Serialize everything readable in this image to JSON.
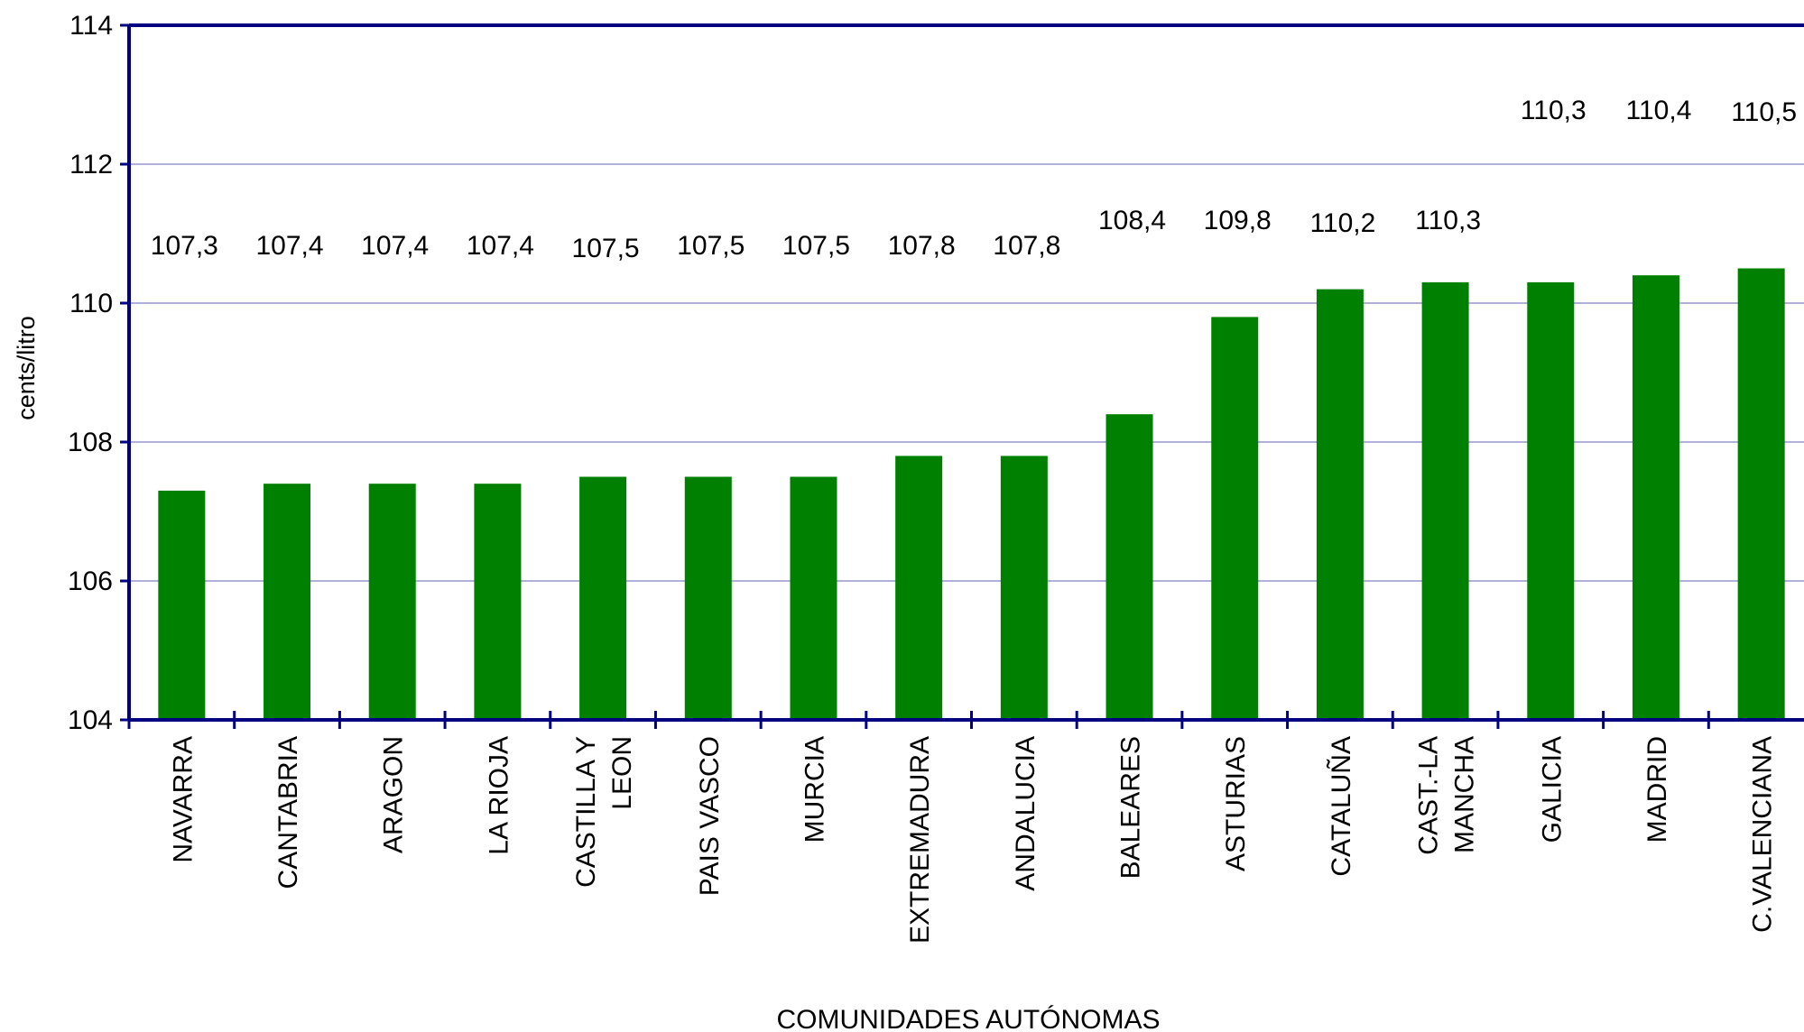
{
  "chart_data": {
    "type": "bar",
    "x_label": "COMUNIDADES AUTÓNOMAS",
    "y_label": "cents/litro",
    "categories": [
      "NAVARRA",
      "CANTABRIA",
      "ARAGON",
      "LA RIOJA",
      "CASTILLA Y\nLEON",
      "PAIS VASCO",
      "MURCIA",
      "EXTREMADURA",
      "ANDALUCIA",
      "BALEARES",
      "ASTURIAS",
      "CATALUÑA",
      "CAST.-LA\nMANCHA",
      "GALICIA",
      "MADRID",
      "C.VALENCIANA"
    ],
    "values": [
      107.3,
      107.4,
      107.4,
      107.4,
      107.5,
      107.5,
      107.5,
      107.8,
      107.8,
      108.4,
      109.8,
      110.2,
      110.3,
      110.3,
      110.4,
      110.5
    ],
    "value_labels": [
      "107,3",
      "107,4",
      "107,4",
      "107,4",
      "107,5",
      "107,5",
      "107,5",
      "107,8",
      "107,8",
      "108,4",
      "109,8",
      "110,2",
      "110,3",
      "110,3",
      "110,4",
      "110,5"
    ],
    "color": "#008000",
    "ylim": [
      104,
      114
    ],
    "yticks": [
      104,
      106,
      108,
      110,
      112,
      114
    ],
    "grid": true
  }
}
